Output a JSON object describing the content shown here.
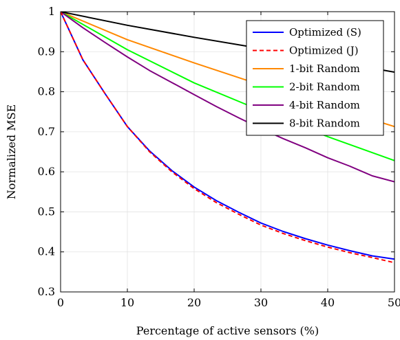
{
  "chart_data": {
    "type": "line",
    "xlabel": "Percentage of active sensors (%)",
    "ylabel": "Normalized MSE",
    "xlim": [
      0,
      50
    ],
    "ylim": [
      0.3,
      1.0
    ],
    "xticks": [
      0,
      10,
      20,
      30,
      40,
      50
    ],
    "xtick_labels": [
      "0",
      "10",
      "20",
      "30",
      "40",
      "50"
    ],
    "yticks": [
      0.3,
      0.4,
      0.5,
      0.6,
      0.7,
      0.8,
      0.9,
      1.0
    ],
    "ytick_labels": [
      "0.3",
      "0.4",
      "0.5",
      "0.6",
      "0.7",
      "0.8",
      "0.9",
      "1"
    ],
    "grid": true,
    "legend_position": "top-right",
    "series": [
      {
        "name": "Optimized (S)",
        "color": "#0000ff",
        "dashed": false,
        "x": [
          0,
          3.33,
          6.67,
          10,
          13.33,
          16.67,
          20,
          23.33,
          26.67,
          30,
          33.33,
          36.67,
          40,
          43.33,
          46.67,
          50
        ],
        "y": [
          1.0,
          0.88,
          0.795,
          0.713,
          0.652,
          0.603,
          0.562,
          0.528,
          0.499,
          0.472,
          0.451,
          0.433,
          0.417,
          0.403,
          0.39,
          0.382
        ]
      },
      {
        "name": "Optimized (J)",
        "color": "#ff0000",
        "dashed": true,
        "x": [
          0,
          3.33,
          6.67,
          10,
          13.33,
          16.67,
          20,
          23.33,
          26.67,
          30,
          33.33,
          36.67,
          40,
          43.33,
          46.67,
          50
        ],
        "y": [
          1.0,
          0.88,
          0.795,
          0.713,
          0.65,
          0.6,
          0.558,
          0.523,
          0.494,
          0.467,
          0.446,
          0.428,
          0.412,
          0.398,
          0.386,
          0.373
        ]
      },
      {
        "name": "1-bit Random",
        "color": "#ff8800",
        "dashed": false,
        "x": [
          0,
          10,
          20,
          30,
          40,
          50
        ],
        "y": [
          1.0,
          0.93,
          0.872,
          0.817,
          0.765,
          0.713
        ]
      },
      {
        "name": "2-bit Random",
        "color": "#00ff00",
        "dashed": false,
        "x": [
          0,
          10,
          20,
          30,
          40,
          50
        ],
        "y": [
          1.0,
          0.905,
          0.822,
          0.753,
          0.688,
          0.628
        ]
      },
      {
        "name": "4-bit Random",
        "color": "#800080",
        "dashed": false,
        "x": [
          0,
          3.33,
          6.67,
          10,
          13.33,
          16.67,
          20,
          23.33,
          26.67,
          30,
          33.33,
          36.67,
          40,
          43.33,
          46.67,
          50
        ],
        "y": [
          1.0,
          0.96,
          0.923,
          0.887,
          0.853,
          0.823,
          0.793,
          0.763,
          0.735,
          0.708,
          0.683,
          0.66,
          0.635,
          0.614,
          0.59,
          0.575
        ]
      },
      {
        "name": "8-bit Random",
        "color": "#000000",
        "dashed": false,
        "x": [
          0,
          10,
          20,
          30,
          40,
          50
        ],
        "y": [
          1.0,
          0.966,
          0.936,
          0.908,
          0.878,
          0.849
        ]
      }
    ]
  }
}
